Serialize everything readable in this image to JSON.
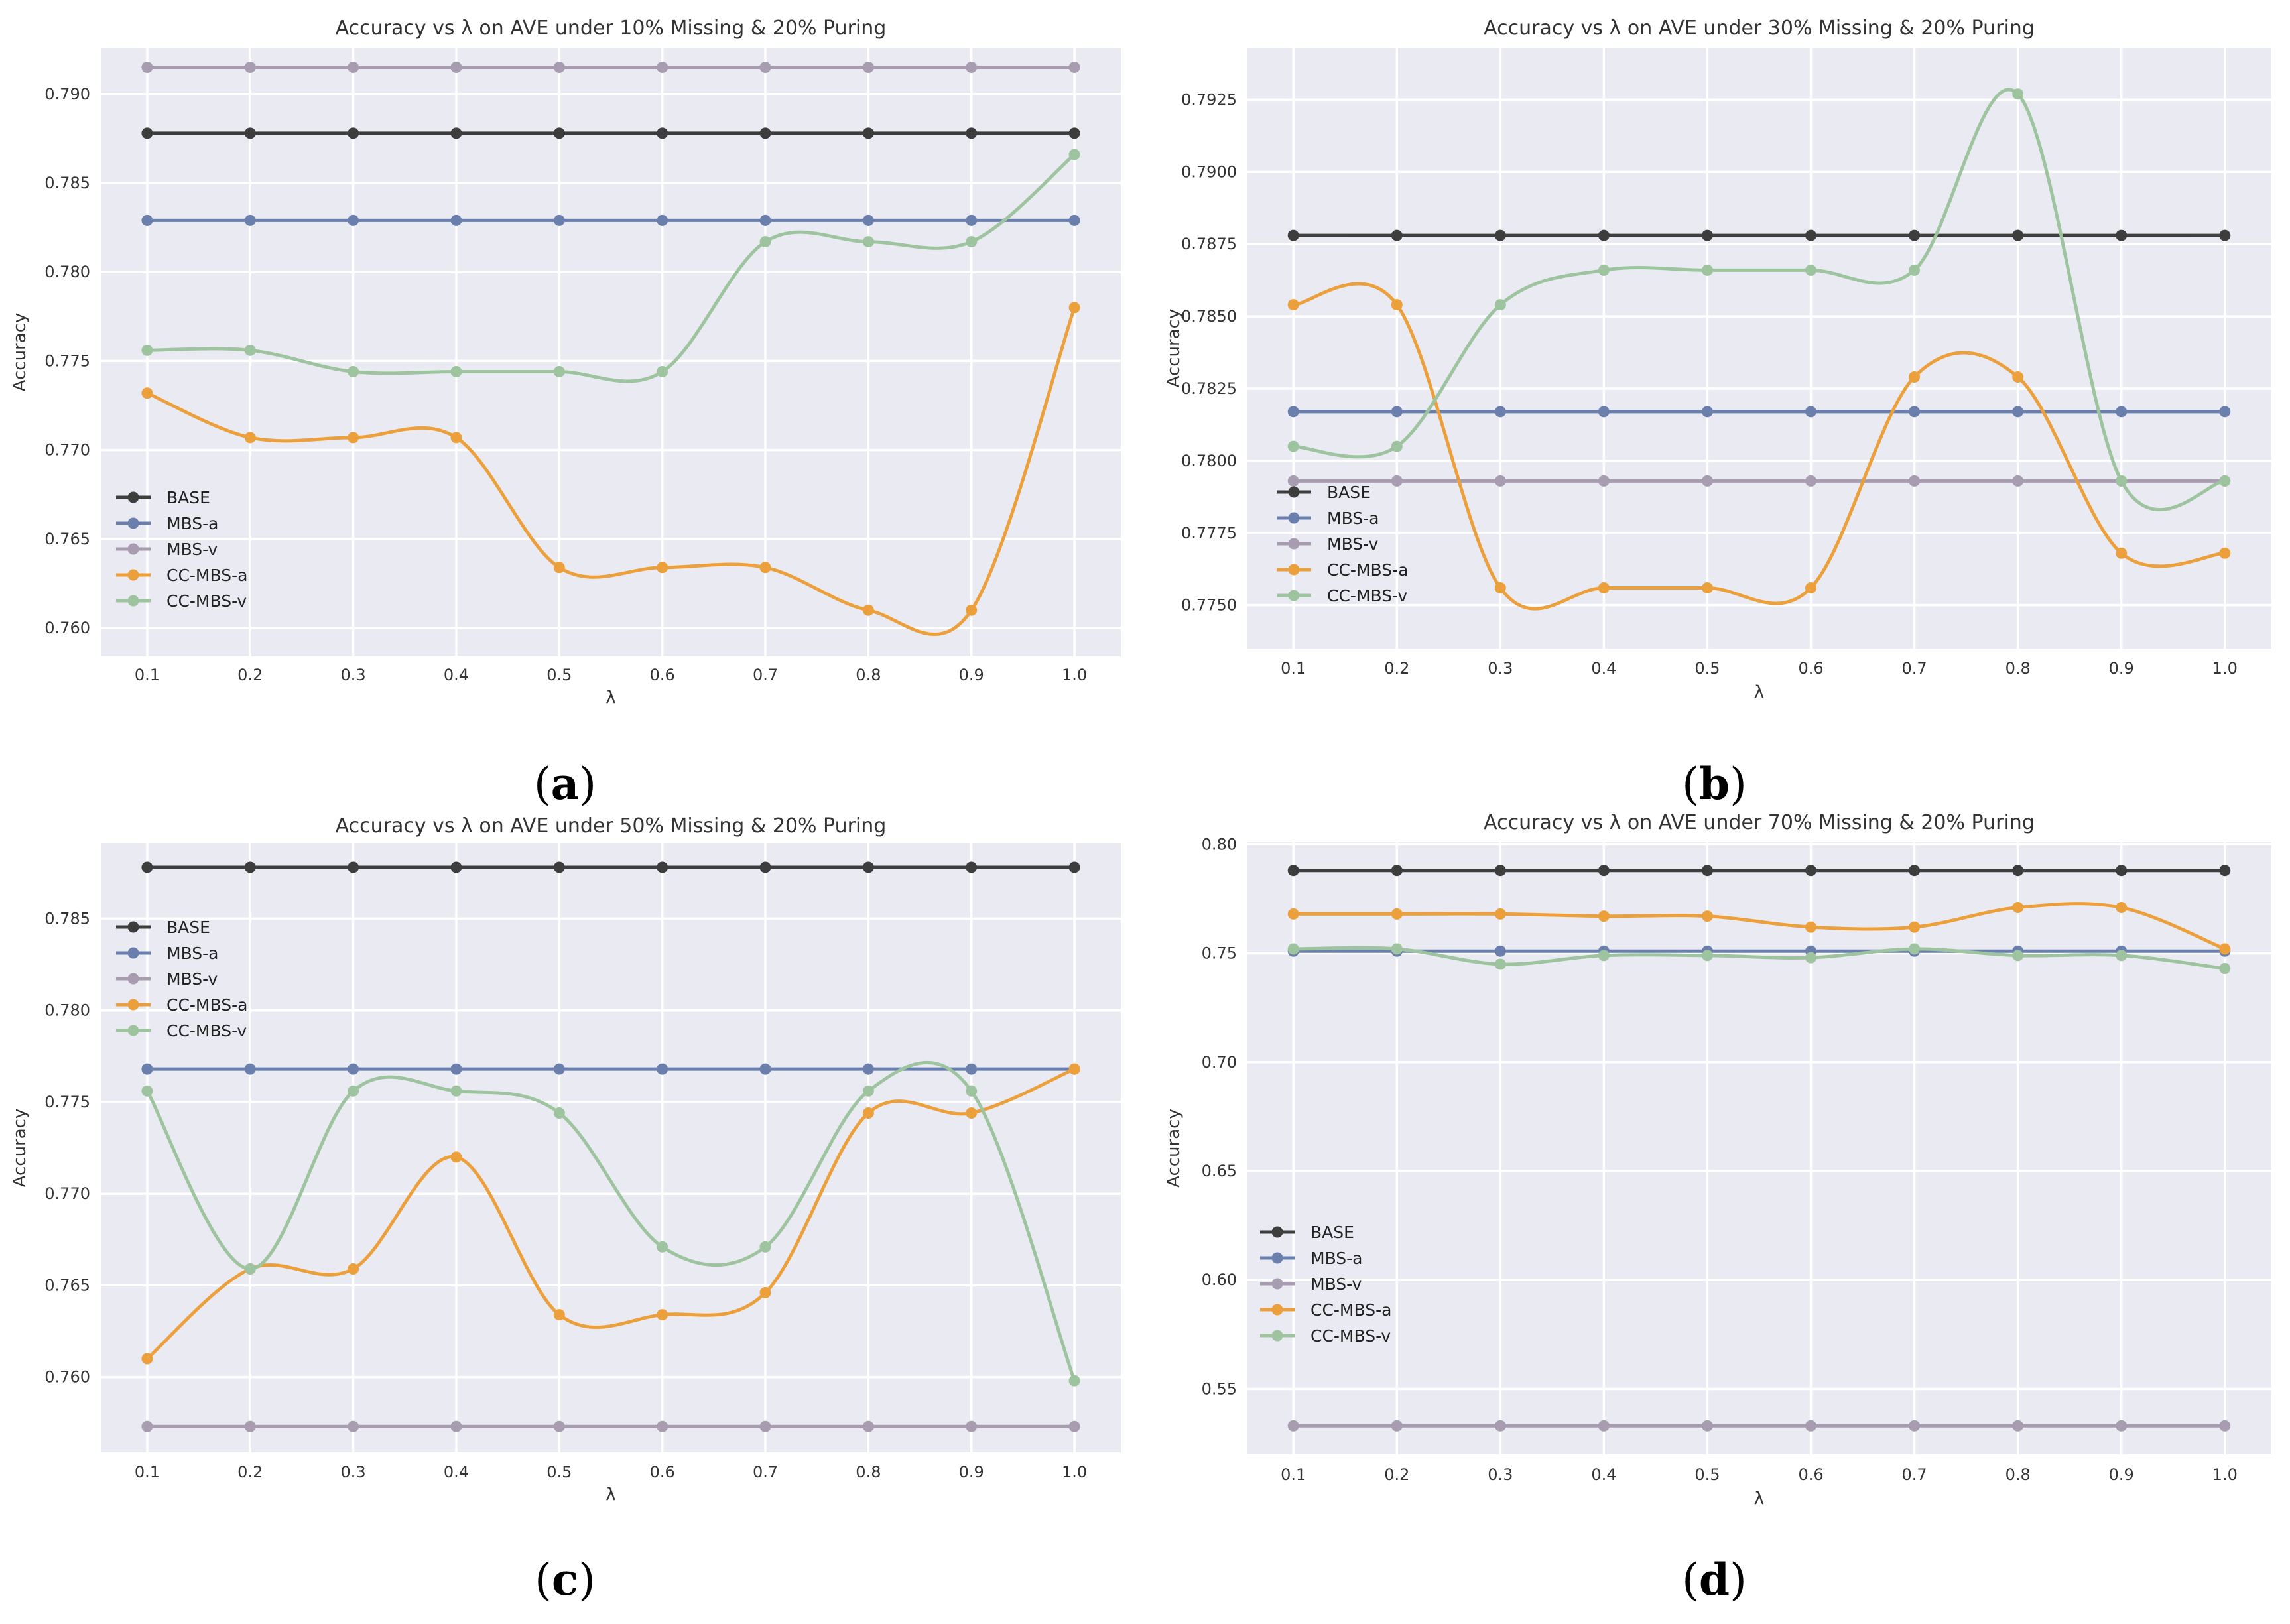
{
  "panel_labels": [
    "(a)",
    "(b)",
    "(c)",
    "(d)"
  ],
  "colors": {
    "BASE": "#3d3d3d",
    "MBS-a": "#6a7fac",
    "MBS-v": "#a89cb0",
    "CC-MBS-a": "#eca03c",
    "CC-MBS-v": "#9dc49e"
  },
  "chart_data": [
    {
      "type": "line",
      "title": "Accuracy vs λ on AVE under 10% Missing & 20% Puring",
      "xlabel": "λ",
      "ylabel": "Accuracy",
      "x": [
        0.1,
        0.2,
        0.3,
        0.4,
        0.5,
        0.6,
        0.7,
        0.8,
        0.9,
        1.0
      ],
      "x_ticks": [
        "0.1",
        "0.2",
        "0.3",
        "0.4",
        "0.5",
        "0.6",
        "0.7",
        "0.8",
        "0.9",
        "1.0"
      ],
      "ylim": [
        0.7584,
        0.7926
      ],
      "y_ticks": [
        "0.760",
        "0.765",
        "0.770",
        "0.775",
        "0.780",
        "0.785",
        "0.790"
      ],
      "y_tick_values": [
        0.76,
        0.765,
        0.77,
        0.775,
        0.78,
        0.785,
        0.79
      ],
      "grid": true,
      "legend_position": "center-left",
      "series": [
        {
          "name": "BASE",
          "values": [
            0.7878,
            0.7878,
            0.7878,
            0.7878,
            0.7878,
            0.7878,
            0.7878,
            0.7878,
            0.7878,
            0.7878
          ]
        },
        {
          "name": "MBS-a",
          "values": [
            0.7829,
            0.7829,
            0.7829,
            0.7829,
            0.7829,
            0.7829,
            0.7829,
            0.7829,
            0.7829,
            0.7829
          ]
        },
        {
          "name": "MBS-v",
          "values": [
            0.7915,
            0.7915,
            0.7915,
            0.7915,
            0.7915,
            0.7915,
            0.7915,
            0.7915,
            0.7915,
            0.7915
          ]
        },
        {
          "name": "CC-MBS-a",
          "values": [
            0.7732,
            0.7707,
            0.7707,
            0.7707,
            0.7634,
            0.7634,
            0.7634,
            0.761,
            0.761,
            0.778
          ]
        },
        {
          "name": "CC-MBS-v",
          "values": [
            0.7756,
            0.7756,
            0.7744,
            0.7744,
            0.7744,
            0.7744,
            0.7817,
            0.7817,
            0.7817,
            0.7866
          ]
        }
      ]
    },
    {
      "type": "line",
      "title": "Accuracy vs λ on AVE under 30% Missing & 20% Puring",
      "xlabel": "λ",
      "ylabel": "Accuracy",
      "x": [
        0.1,
        0.2,
        0.3,
        0.4,
        0.5,
        0.6,
        0.7,
        0.8,
        0.9,
        1.0
      ],
      "x_ticks": [
        "0.1",
        "0.2",
        "0.3",
        "0.4",
        "0.5",
        "0.6",
        "0.7",
        "0.8",
        "0.9",
        "1.0"
      ],
      "ylim": [
        0.7735,
        0.7943
      ],
      "y_ticks": [
        "0.7750",
        "0.7775",
        "0.7800",
        "0.7825",
        "0.7850",
        "0.7875",
        "0.7900",
        "0.7925"
      ],
      "y_tick_values": [
        0.775,
        0.7775,
        0.78,
        0.7825,
        0.785,
        0.7875,
        0.79,
        0.7925
      ],
      "grid": true,
      "legend_position": "lower-left",
      "series": [
        {
          "name": "BASE",
          "values": [
            0.7878,
            0.7878,
            0.7878,
            0.7878,
            0.7878,
            0.7878,
            0.7878,
            0.7878,
            0.7878,
            0.7878
          ]
        },
        {
          "name": "MBS-a",
          "values": [
            0.7817,
            0.7817,
            0.7817,
            0.7817,
            0.7817,
            0.7817,
            0.7817,
            0.7817,
            0.7817,
            0.7817
          ]
        },
        {
          "name": "MBS-v",
          "values": [
            0.7793,
            0.7793,
            0.7793,
            0.7793,
            0.7793,
            0.7793,
            0.7793,
            0.7793,
            0.7793,
            0.7793
          ]
        },
        {
          "name": "CC-MBS-a",
          "values": [
            0.7854,
            0.7854,
            0.7756,
            0.7756,
            0.7756,
            0.7756,
            0.7829,
            0.7829,
            0.7768,
            0.7768
          ]
        },
        {
          "name": "CC-MBS-v",
          "values": [
            0.7805,
            0.7805,
            0.7854,
            0.7866,
            0.7866,
            0.7866,
            0.7866,
            0.7927,
            0.7793,
            0.7793
          ]
        }
      ]
    },
    {
      "type": "line",
      "title": "Accuracy vs λ on AVE under 50% Missing & 20% Puring",
      "xlabel": "λ",
      "ylabel": "Accuracy",
      "x": [
        0.1,
        0.2,
        0.3,
        0.4,
        0.5,
        0.6,
        0.7,
        0.8,
        0.9,
        1.0
      ],
      "x_ticks": [
        "0.1",
        "0.2",
        "0.3",
        "0.4",
        "0.5",
        "0.6",
        "0.7",
        "0.8",
        "0.9",
        "1.0"
      ],
      "ylim": [
        0.7559,
        0.7891
      ],
      "y_ticks": [
        "0.760",
        "0.765",
        "0.770",
        "0.775",
        "0.780",
        "0.785"
      ],
      "y_tick_values": [
        0.76,
        0.765,
        0.77,
        0.775,
        0.78,
        0.785
      ],
      "grid": true,
      "legend_position": "upper-left",
      "series": [
        {
          "name": "BASE",
          "values": [
            0.7878,
            0.7878,
            0.7878,
            0.7878,
            0.7878,
            0.7878,
            0.7878,
            0.7878,
            0.7878,
            0.7878
          ]
        },
        {
          "name": "MBS-a",
          "values": [
            0.7768,
            0.7768,
            0.7768,
            0.7768,
            0.7768,
            0.7768,
            0.7768,
            0.7768,
            0.7768,
            0.7768
          ]
        },
        {
          "name": "MBS-v",
          "values": [
            0.7573,
            0.7573,
            0.7573,
            0.7573,
            0.7573,
            0.7573,
            0.7573,
            0.7573,
            0.7573,
            0.7573
          ]
        },
        {
          "name": "CC-MBS-a",
          "values": [
            0.761,
            0.7659,
            0.7659,
            0.772,
            0.7634,
            0.7634,
            0.7646,
            0.7744,
            0.7744,
            0.7768
          ]
        },
        {
          "name": "CC-MBS-v",
          "values": [
            0.7756,
            0.7659,
            0.7756,
            0.7756,
            0.7744,
            0.7671,
            0.7671,
            0.7756,
            0.7756,
            0.7598
          ]
        }
      ]
    },
    {
      "type": "line",
      "title": "Accuracy vs λ on AVE under 70% Missing & 20% Puring",
      "xlabel": "λ",
      "ylabel": "Accuracy",
      "x": [
        0.1,
        0.2,
        0.3,
        0.4,
        0.5,
        0.6,
        0.7,
        0.8,
        0.9,
        1.0
      ],
      "x_ticks": [
        "0.1",
        "0.2",
        "0.3",
        "0.4",
        "0.5",
        "0.6",
        "0.7",
        "0.8",
        "0.9",
        "1.0"
      ],
      "ylim": [
        0.52,
        0.801
      ],
      "y_ticks": [
        "0.55",
        "0.60",
        "0.65",
        "0.70",
        "0.75",
        "0.80"
      ],
      "y_tick_values": [
        0.55,
        0.6,
        0.65,
        0.7,
        0.75,
        0.8
      ],
      "grid": true,
      "legend_position": "center-left",
      "series": [
        {
          "name": "BASE",
          "values": [
            0.788,
            0.788,
            0.788,
            0.788,
            0.788,
            0.788,
            0.788,
            0.788,
            0.788,
            0.788
          ]
        },
        {
          "name": "MBS-a",
          "values": [
            0.751,
            0.751,
            0.751,
            0.751,
            0.751,
            0.751,
            0.751,
            0.751,
            0.751,
            0.751
          ]
        },
        {
          "name": "MBS-v",
          "values": [
            0.533,
            0.533,
            0.533,
            0.533,
            0.533,
            0.533,
            0.533,
            0.533,
            0.533,
            0.533
          ]
        },
        {
          "name": "CC-MBS-a",
          "values": [
            0.768,
            0.768,
            0.768,
            0.767,
            0.767,
            0.762,
            0.762,
            0.771,
            0.771,
            0.752
          ]
        },
        {
          "name": "CC-MBS-v",
          "values": [
            0.752,
            0.752,
            0.745,
            0.749,
            0.749,
            0.748,
            0.752,
            0.749,
            0.749,
            0.743
          ]
        }
      ]
    }
  ]
}
